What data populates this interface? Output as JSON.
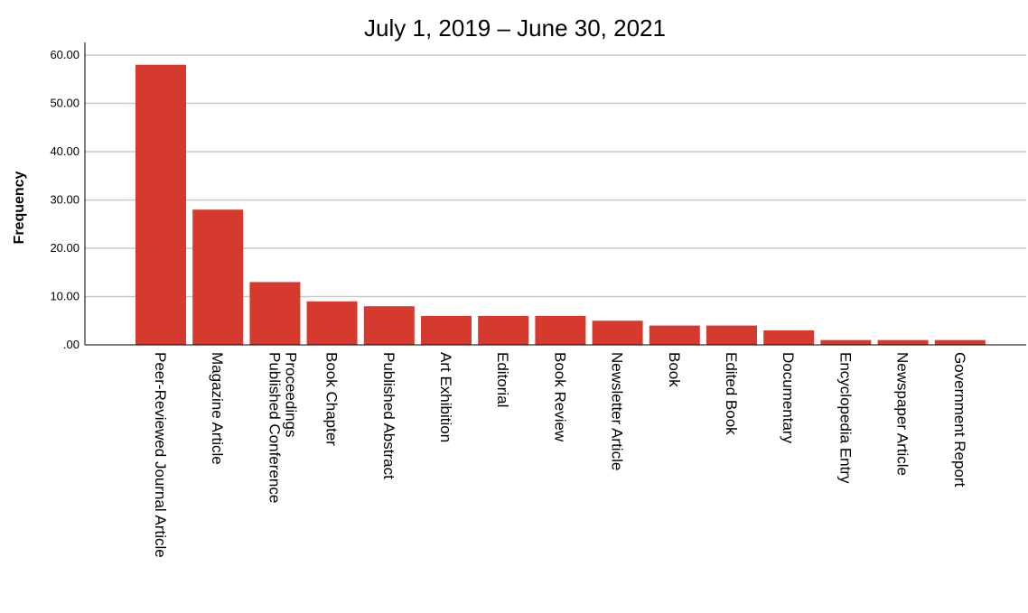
{
  "chart_data": {
    "type": "bar",
    "title": "July 1, 2019 – June 30, 2021",
    "xlabel": "",
    "ylabel": "Frequency",
    "ylim": [
      0,
      62
    ],
    "yticks": [
      ".00",
      "10.00",
      "20.00",
      "30.00",
      "40.00",
      "50.00",
      "60.00"
    ],
    "ytick_values": [
      0,
      10,
      20,
      30,
      40,
      50,
      60
    ],
    "categories": [
      "Peer-Reviewed Journal Article",
      "Magazine Article",
      "Published Conference Proceedings",
      "Book Chapter",
      "Published Abstract",
      "Art Exhibition",
      "Editorial",
      "Book Review",
      "Newsletter Article",
      "Book",
      "Edited Book",
      "Documentary",
      "Encyclopedia Entry",
      "Newspaper Article",
      "Government Report"
    ],
    "values": [
      58,
      28,
      13,
      9,
      8,
      6,
      6,
      6,
      5,
      4,
      4,
      3,
      1,
      1,
      1
    ],
    "bar_color": "#d63a2f",
    "grid": true,
    "legend": "none"
  }
}
